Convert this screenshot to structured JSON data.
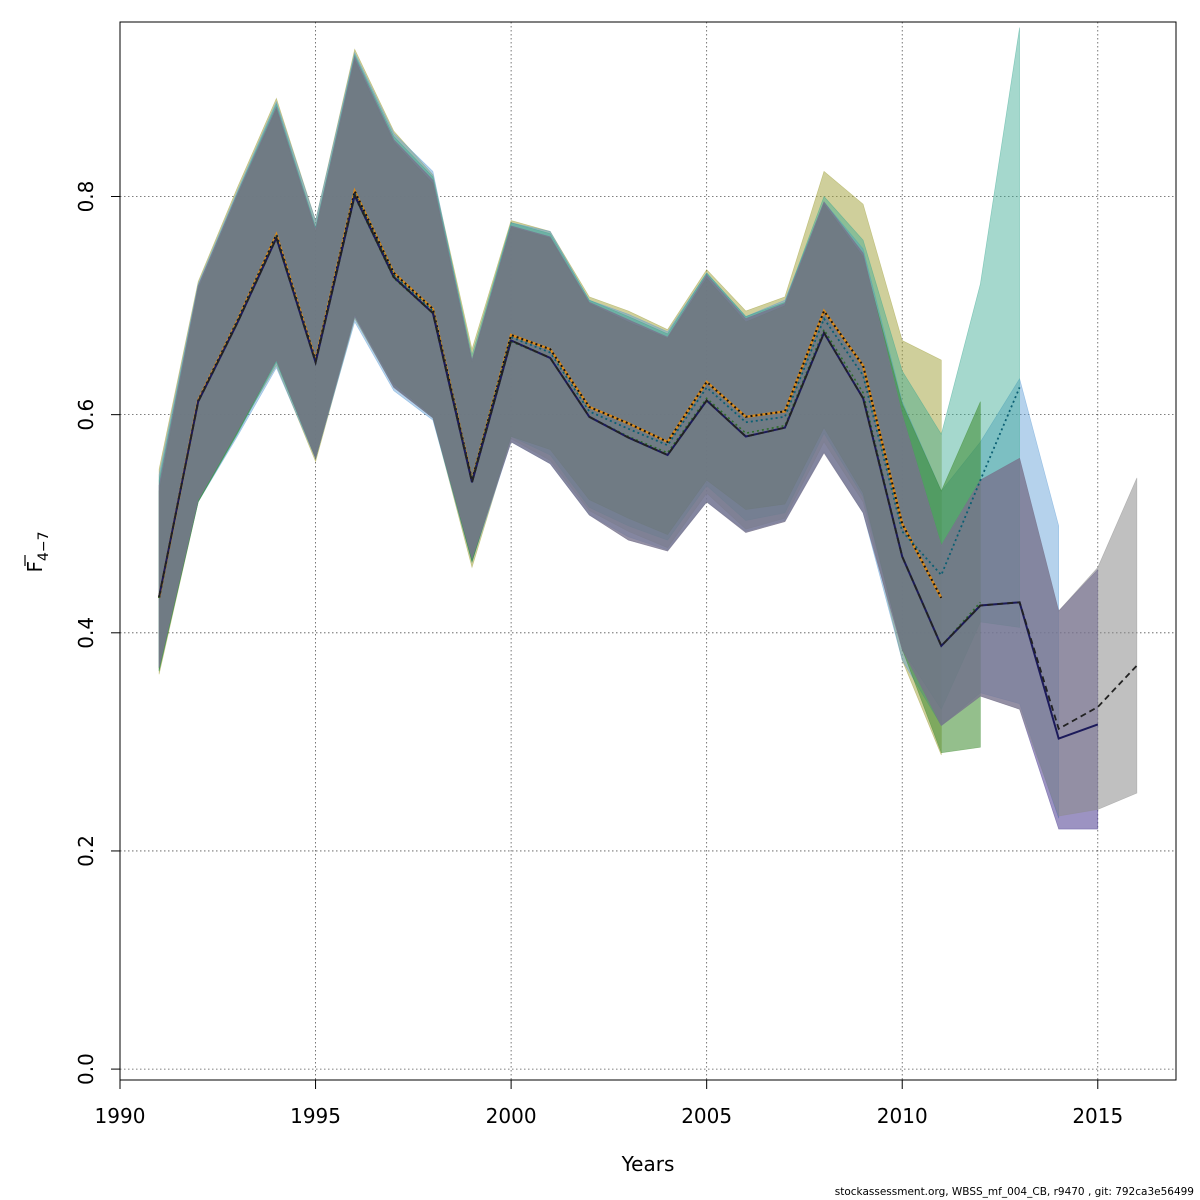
{
  "chart_data": {
    "type": "area",
    "xlabel": "Years",
    "ylabel_main": "F",
    "ylabel_sub": "4−7",
    "xlim": [
      1990,
      2017
    ],
    "ylim": [
      -0.01,
      0.96
    ],
    "x_ticks": [
      1990,
      1995,
      2000,
      2005,
      2010,
      2015
    ],
    "y_ticks": [
      0.0,
      0.2,
      0.4,
      0.6,
      0.8
    ],
    "y_tick_labels": [
      "0.0",
      "0.2",
      "0.4",
      "0.6",
      "0.8"
    ],
    "grid": true,
    "footer": "stockassessment.org, WBSS_mf_004_CB, r9470 , git: 792ca3e56499",
    "colors": {
      "green": "#3d8b2e",
      "olive": "#9f9f37",
      "blue": "#5b9bd5",
      "teal": "#38a891",
      "purple": "#4a3b8f",
      "gray": "#8c8c8c",
      "light_blue": "#87c4e8"
    },
    "series": [
      {
        "color": "olive",
        "opacity": 0.5,
        "line": "dotted-black",
        "x": [
          1991,
          1992,
          1993,
          1994,
          1995,
          1996,
          1997,
          1998,
          1999,
          2000,
          2001,
          2002,
          2003,
          2004,
          2005,
          2006,
          2007,
          2008,
          2009,
          2010,
          2011
        ],
        "estimate": [
          0.432,
          0.613,
          0.686,
          0.765,
          0.65,
          0.805,
          0.73,
          0.697,
          0.54,
          0.673,
          0.66,
          0.607,
          0.592,
          0.575,
          0.63,
          0.598,
          0.603,
          0.695,
          0.645,
          0.5,
          0.432
        ],
        "lower": [
          0.362,
          0.52,
          0.584,
          0.645,
          0.557,
          0.688,
          0.625,
          0.597,
          0.46,
          0.578,
          0.558,
          0.512,
          0.493,
          0.478,
          0.528,
          0.495,
          0.505,
          0.575,
          0.52,
          0.375,
          0.288
        ],
        "upper": [
          0.55,
          0.722,
          0.808,
          0.89,
          0.778,
          0.935,
          0.86,
          0.82,
          0.66,
          0.778,
          0.768,
          0.708,
          0.695,
          0.678,
          0.733,
          0.695,
          0.708,
          0.823,
          0.793,
          0.668,
          0.65
        ]
      },
      {
        "color": "blue",
        "opacity": 0.45,
        "line": "none",
        "x": [
          1991,
          1992,
          1993,
          1994,
          1995,
          1996,
          1997,
          1998,
          1999,
          2000,
          2001,
          2002,
          2003,
          2004,
          2005,
          2006,
          2007,
          2008,
          2009,
          2010,
          2011,
          2012,
          2013,
          2014
        ],
        "estimate": [
          0.433,
          0.612,
          0.684,
          0.762,
          0.648,
          0.802,
          0.727,
          0.694,
          0.539,
          0.67,
          0.655,
          0.6,
          0.583,
          0.568,
          0.62,
          0.588,
          0.594,
          0.68,
          0.625,
          0.48,
          0.4,
          0.45,
          0.46,
          0.33
        ],
        "lower": [
          0.368,
          0.52,
          0.58,
          0.643,
          0.56,
          0.685,
          0.622,
          0.595,
          0.465,
          0.575,
          0.555,
          0.508,
          0.488,
          0.476,
          0.52,
          0.493,
          0.503,
          0.566,
          0.51,
          0.375,
          0.315,
          0.345,
          0.335,
          0.23
        ],
        "upper": [
          0.545,
          0.72,
          0.805,
          0.887,
          0.778,
          0.932,
          0.858,
          0.823,
          0.65,
          0.776,
          0.768,
          0.705,
          0.692,
          0.676,
          0.73,
          0.69,
          0.705,
          0.795,
          0.752,
          0.612,
          0.53,
          0.575,
          0.633,
          0.498
        ]
      },
      {
        "color": "teal",
        "opacity": 0.45,
        "line": "dotted-teal",
        "x": [
          1991,
          1992,
          1993,
          1994,
          1995,
          1996,
          1997,
          1998,
          1999,
          2000,
          2001,
          2002,
          2003,
          2004,
          2005,
          2006,
          2007,
          2008,
          2009,
          2010,
          2011,
          2012,
          2013
        ],
        "estimate": [
          0.433,
          0.612,
          0.685,
          0.763,
          0.649,
          0.803,
          0.728,
          0.695,
          0.54,
          0.671,
          0.657,
          0.603,
          0.587,
          0.572,
          0.625,
          0.593,
          0.598,
          0.688,
          0.636,
          0.493,
          0.453,
          0.54,
          0.625
        ],
        "lower": [
          0.365,
          0.52,
          0.582,
          0.648,
          0.56,
          0.69,
          0.626,
          0.597,
          0.465,
          0.58,
          0.563,
          0.515,
          0.498,
          0.485,
          0.535,
          0.503,
          0.51,
          0.583,
          0.525,
          0.385,
          0.33,
          0.41,
          0.405
        ],
        "upper": [
          0.54,
          0.718,
          0.803,
          0.885,
          0.772,
          0.93,
          0.855,
          0.818,
          0.655,
          0.776,
          0.766,
          0.705,
          0.69,
          0.674,
          0.73,
          0.69,
          0.703,
          0.8,
          0.76,
          0.64,
          0.582,
          0.72,
          0.955
        ]
      },
      {
        "color": "green",
        "opacity": 0.55,
        "line": "dotted-green",
        "x": [
          1991,
          1992,
          1993,
          1994,
          1995,
          1996,
          1997,
          1998,
          1999,
          2000,
          2001,
          2002,
          2003,
          2004,
          2005,
          2006,
          2007,
          2008,
          2009,
          2010,
          2011,
          2012
        ],
        "estimate": [
          0.432,
          0.612,
          0.684,
          0.762,
          0.648,
          0.8,
          0.725,
          0.693,
          0.538,
          0.667,
          0.652,
          0.598,
          0.58,
          0.565,
          0.615,
          0.583,
          0.59,
          0.678,
          0.62,
          0.47,
          0.388,
          0.428
        ],
        "lower": [
          0.365,
          0.52,
          0.583,
          0.65,
          0.56,
          0.692,
          0.628,
          0.598,
          0.465,
          0.58,
          0.568,
          0.522,
          0.505,
          0.49,
          0.54,
          0.513,
          0.518,
          0.588,
          0.528,
          0.385,
          0.29,
          0.295
        ],
        "upper": [
          0.53,
          0.715,
          0.8,
          0.88,
          0.768,
          0.925,
          0.85,
          0.812,
          0.648,
          0.772,
          0.762,
          0.702,
          0.685,
          0.67,
          0.725,
          0.685,
          0.7,
          0.793,
          0.745,
          0.61,
          0.53,
          0.612
        ]
      },
      {
        "color": "purple",
        "opacity": 0.55,
        "line": "solid-navy",
        "x": [
          1991,
          1992,
          1993,
          1994,
          1995,
          1996,
          1997,
          1998,
          1999,
          2000,
          2001,
          2002,
          2003,
          2004,
          2005,
          2006,
          2007,
          2008,
          2009,
          2010,
          2011,
          2012,
          2013,
          2014,
          2015
        ],
        "estimate": [
          0.433,
          0.612,
          0.684,
          0.762,
          0.648,
          0.801,
          0.726,
          0.693,
          0.538,
          0.668,
          0.652,
          0.598,
          0.579,
          0.563,
          0.613,
          0.58,
          0.588,
          0.675,
          0.615,
          0.47,
          0.388,
          0.425,
          0.428,
          0.303,
          0.316
        ],
        "lower": [
          0.368,
          0.522,
          0.585,
          0.65,
          0.56,
          0.69,
          0.625,
          0.597,
          0.468,
          0.575,
          0.555,
          0.508,
          0.485,
          0.475,
          0.52,
          0.492,
          0.502,
          0.565,
          0.51,
          0.385,
          0.315,
          0.342,
          0.33,
          0.22,
          0.22
        ],
        "upper": [
          0.535,
          0.718,
          0.802,
          0.882,
          0.77,
          0.928,
          0.852,
          0.815,
          0.65,
          0.773,
          0.763,
          0.703,
          0.687,
          0.671,
          0.728,
          0.688,
          0.702,
          0.795,
          0.748,
          0.6,
          0.48,
          0.54,
          0.56,
          0.42,
          0.458
        ]
      },
      {
        "color": "gray",
        "opacity": 0.55,
        "line": "dashed-black",
        "x": [
          1991,
          1992,
          1993,
          1994,
          1995,
          1996,
          1997,
          1998,
          1999,
          2000,
          2001,
          2002,
          2003,
          2004,
          2005,
          2006,
          2007,
          2008,
          2009,
          2010,
          2011,
          2012,
          2013,
          2014,
          2015,
          2016
        ],
        "estimate": [
          0.433,
          0.612,
          0.684,
          0.762,
          0.648,
          0.801,
          0.726,
          0.693,
          0.538,
          0.668,
          0.652,
          0.598,
          0.579,
          0.563,
          0.613,
          0.58,
          0.588,
          0.675,
          0.615,
          0.47,
          0.388,
          0.425,
          0.428,
          0.312,
          0.332,
          0.37
        ],
        "lower": [
          0.368,
          0.522,
          0.585,
          0.65,
          0.56,
          0.69,
          0.625,
          0.597,
          0.468,
          0.575,
          0.555,
          0.508,
          0.485,
          0.475,
          0.52,
          0.492,
          0.502,
          0.565,
          0.51,
          0.385,
          0.315,
          0.342,
          0.33,
          0.232,
          0.238,
          0.253
        ],
        "upper": [
          0.535,
          0.718,
          0.802,
          0.882,
          0.77,
          0.928,
          0.852,
          0.815,
          0.65,
          0.773,
          0.763,
          0.703,
          0.687,
          0.671,
          0.728,
          0.688,
          0.702,
          0.795,
          0.748,
          0.6,
          0.48,
          0.54,
          0.56,
          0.42,
          0.46,
          0.542
        ]
      }
    ]
  }
}
